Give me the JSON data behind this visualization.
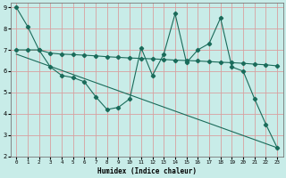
{
  "xlabel": "Humidex (Indice chaleur)",
  "xlim": [
    -0.5,
    23.5
  ],
  "ylim": [
    2,
    9.2
  ],
  "yticks": [
    2,
    3,
    4,
    5,
    6,
    7,
    8,
    9
  ],
  "xticks": [
    0,
    1,
    2,
    3,
    4,
    5,
    6,
    7,
    8,
    9,
    10,
    11,
    12,
    13,
    14,
    15,
    16,
    17,
    18,
    19,
    20,
    21,
    22,
    23
  ],
  "bg_color": "#c8ece8",
  "grid_color": "#d8a0a0",
  "line_color": "#1a6b5a",
  "line1_x": [
    0,
    1,
    2,
    3,
    4,
    5,
    6,
    7,
    8,
    9,
    10,
    11,
    12,
    13,
    14,
    15,
    16,
    17,
    18,
    19,
    20,
    21,
    22,
    23
  ],
  "line1_y": [
    9.0,
    8.1,
    7.0,
    6.2,
    5.8,
    5.7,
    5.5,
    4.8,
    4.2,
    4.3,
    4.7,
    7.1,
    5.8,
    6.8,
    8.7,
    6.4,
    7.0,
    7.3,
    8.5,
    6.2,
    6.0,
    4.7,
    3.5,
    2.4
  ],
  "line2_x": [
    0,
    1,
    2,
    3,
    4,
    5,
    6,
    7,
    8,
    9,
    10,
    11,
    12,
    13,
    14,
    15,
    16,
    17,
    18,
    19,
    20,
    21,
    22,
    23
  ],
  "line2_y": [
    7.0,
    7.0,
    7.0,
    6.85,
    6.8,
    6.78,
    6.75,
    6.72,
    6.68,
    6.65,
    6.62,
    6.6,
    6.58,
    6.55,
    6.52,
    6.5,
    6.48,
    6.45,
    6.42,
    6.4,
    6.37,
    6.33,
    6.3,
    6.25
  ],
  "line3_x": [
    0,
    23
  ],
  "line3_y": [
    6.8,
    2.4
  ]
}
